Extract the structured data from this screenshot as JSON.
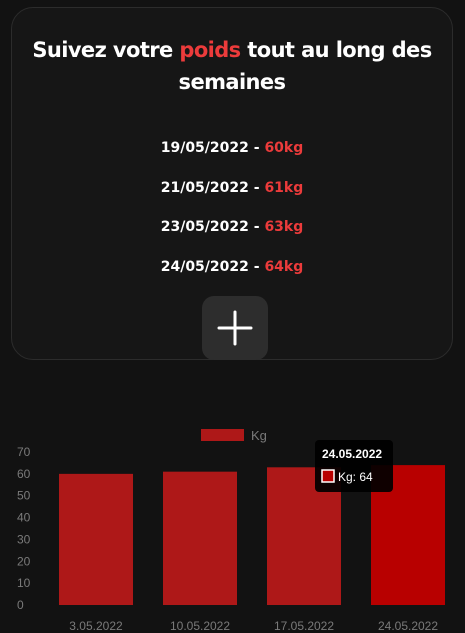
{
  "header": {
    "title_before": "Suivez votre ",
    "title_accent": "poids",
    "title_after": " tout au long des semaines"
  },
  "entries": [
    {
      "date": "19/05/2022",
      "sep": " - ",
      "value": "60kg"
    },
    {
      "date": "21/05/2022",
      "sep": " - ",
      "value": "61kg"
    },
    {
      "date": "23/05/2022",
      "sep": " - ",
      "value": "63kg"
    },
    {
      "date": "24/05/2022",
      "sep": " - ",
      "value": "64kg"
    }
  ],
  "add_button": {
    "icon": "plus-icon"
  },
  "colors": {
    "accent": "#ec3b3b",
    "bar": "#ae1818",
    "bar_active": "#b80000",
    "background": "#121212",
    "card": "#161616"
  },
  "chart_data": {
    "type": "bar",
    "categories": [
      "3.05.2022",
      "10.05.2022",
      "17.05.2022",
      "24.05.2022"
    ],
    "series": [
      {
        "name": "Kg",
        "values": [
          60,
          61,
          63,
          64
        ]
      }
    ],
    "ylim": [
      0,
      70
    ],
    "yticks": [
      0,
      10,
      20,
      30,
      40,
      50,
      60,
      70
    ],
    "grid": false,
    "legend": "top-center",
    "tooltip": {
      "title": "24.05.2022",
      "label": "Kg: 64",
      "index": 3
    }
  }
}
